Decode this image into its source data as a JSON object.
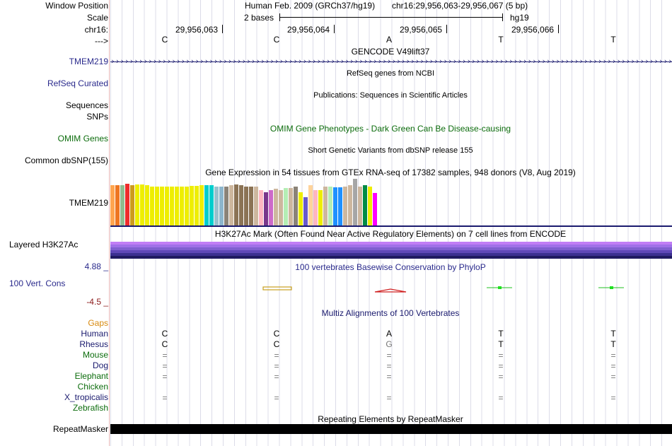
{
  "header": {
    "window_position_label": "Window Position",
    "scale_label": "Scale",
    "chr_label": "chr16:",
    "strand_label": "--->",
    "assembly_text": "Human Feb. 2009 (GRCh37/hg19)",
    "position_text": "chr16:29,956,063-29,956,067 (5 bp)",
    "scale_text": "2 bases",
    "scale_db": "hg19",
    "coords": [
      "29,956,063",
      "29,956,064",
      "29,956,065",
      "29,956,066"
    ],
    "bases": [
      "C",
      "C",
      "A",
      "T",
      "T"
    ]
  },
  "tracks": {
    "gencode": {
      "title": "GENCODE V49lift37",
      "label": "TMEM219",
      "arrows": "›››››››››››››››››››››››››››››››››››››››››››››››››››››››››››››››››››››››››››››››››››››››››››››››››››››››››››››››››››››››››››››››››››››››"
    },
    "refseq": {
      "title": "RefSeq genes from NCBI",
      "label": "RefSeq Curated"
    },
    "publications": {
      "title": "Publications: Sequences in Scientific Articles",
      "label_line1": "Sequences",
      "label_line2": "SNPs"
    },
    "omim": {
      "title": "OMIM Gene Phenotypes - Dark Green Can Be Disease-causing",
      "label": "OMIM Genes"
    },
    "dbsnp": {
      "title": "Short Genetic Variants from dbSNP release 155",
      "label": "Common dbSNP(155)"
    },
    "gtex": {
      "title": "Gene Expression in 54 tissues from GTEx RNA-seq of 17382 samples, 948 donors (V8, Aug 2019)",
      "label": "TMEM219",
      "bars": [
        {
          "color": "#FFA54F",
          "value": 0.83
        },
        {
          "color": "#EE7621",
          "value": 0.83
        },
        {
          "color": "#8FBC8F",
          "value": 0.83
        },
        {
          "color": "#EE2C2C",
          "value": 0.85
        },
        {
          "color": "#CD9B1D",
          "value": 0.83
        },
        {
          "color": "#EEEE00",
          "value": 0.84
        },
        {
          "color": "#EEEE00",
          "value": 0.84
        },
        {
          "color": "#EEEE00",
          "value": 0.83
        },
        {
          "color": "#EEEE00",
          "value": 0.8
        },
        {
          "color": "#EEEE00",
          "value": 0.8
        },
        {
          "color": "#EEEE00",
          "value": 0.79
        },
        {
          "color": "#EEEE00",
          "value": 0.79
        },
        {
          "color": "#EEEE00",
          "value": 0.79
        },
        {
          "color": "#EEEE00",
          "value": 0.8
        },
        {
          "color": "#EEEE00",
          "value": 0.79
        },
        {
          "color": "#EEEE00",
          "value": 0.8
        },
        {
          "color": "#EEEE00",
          "value": 0.81
        },
        {
          "color": "#EEEE00",
          "value": 0.81
        },
        {
          "color": "#EEEE00",
          "value": 0.83
        },
        {
          "color": "#00CDCD",
          "value": 0.82
        },
        {
          "color": "#00CDCD",
          "value": 0.82
        },
        {
          "color": "#9AC0CD",
          "value": 0.8
        },
        {
          "color": "#8DB6CD",
          "value": 0.8
        },
        {
          "color": "#8B8378",
          "value": 0.8
        },
        {
          "color": "#CDB79E",
          "value": 0.83
        },
        {
          "color": "#8B7355",
          "value": 0.84
        },
        {
          "color": "#8B7355",
          "value": 0.83
        },
        {
          "color": "#8B7355",
          "value": 0.8
        },
        {
          "color": "#8B7355",
          "value": 0.79
        },
        {
          "color": "#CDB79E",
          "value": 0.8
        },
        {
          "color": "#FFB6C1",
          "value": 0.72
        },
        {
          "color": "#7A378B",
          "value": 0.68
        },
        {
          "color": "#CD69C9",
          "value": 0.73
        },
        {
          "color": "#CDB79E",
          "value": 0.75
        },
        {
          "color": "#CDB79E",
          "value": 0.73
        },
        {
          "color": "#B4EEB4",
          "value": 0.77
        },
        {
          "color": "#CDB79E",
          "value": 0.77
        },
        {
          "color": "#8B8378",
          "value": 0.8
        },
        {
          "color": "#EEEE00",
          "value": 0.68
        },
        {
          "color": "#6A5ACD",
          "value": 0.58
        },
        {
          "color": "#FFD39B",
          "value": 0.83
        },
        {
          "color": "#FFB6C1",
          "value": 0.72
        },
        {
          "color": "#EEEE00",
          "value": 0.73
        },
        {
          "color": "#CDB79E",
          "value": 0.79
        },
        {
          "color": "#B4EEB4",
          "value": 0.79
        },
        {
          "color": "#1E90FF",
          "value": 0.78
        },
        {
          "color": "#1E90FF",
          "value": 0.78
        },
        {
          "color": "#CDB79E",
          "value": 0.8
        },
        {
          "color": "#CDB79E",
          "value": 0.82
        },
        {
          "color": "#A6A6A6",
          "value": 0.96
        },
        {
          "color": "#CDB79E",
          "value": 0.8
        },
        {
          "color": "#008B45",
          "value": 0.83
        },
        {
          "color": "#EEEE00",
          "value": 0.8
        },
        {
          "color": "#FF00FF",
          "value": 0.66
        }
      ]
    },
    "h3k27ac": {
      "title": "H3K27Ac Mark (Often Found Near Active Regulatory Elements) on 7 cell lines from ENCODE",
      "label": "Layered H3K27Ac",
      "layers": [
        "#C17DF5",
        "#A070E8",
        "#8060D0",
        "#6048B8",
        "#3C3090",
        "#201A60"
      ]
    },
    "conservation": {
      "title": "100 vertebrates Basewise Conservation by PhyloP",
      "label": "100 Vert. Cons",
      "max_label": "4.88 _",
      "min_label": "-4.5 _"
    },
    "multiz": {
      "title": "Multiz Alignments of 100 Vertebrates",
      "gaps_label": "Gaps",
      "species": [
        {
          "name": "Human",
          "row": [
            "C",
            "C",
            "A",
            "T",
            "T"
          ]
        },
        {
          "name": "Rhesus",
          "row": [
            "C",
            "C",
            "G",
            "T",
            "T"
          ]
        },
        {
          "name": "Mouse",
          "row": [
            "=",
            "=",
            "=",
            "=",
            "="
          ]
        },
        {
          "name": "Dog",
          "row": [
            "=",
            "=",
            "=",
            "=",
            "="
          ]
        },
        {
          "name": "Elephant",
          "row": [
            "=",
            "=",
            "=",
            "=",
            "="
          ]
        },
        {
          "name": "Chicken",
          "row": [
            "",
            "",
            "",
            "",
            ""
          ]
        },
        {
          "name": "X_tropicalis",
          "row": [
            "=",
            "=",
            "=",
            "=",
            "="
          ]
        },
        {
          "name": "Zebrafish",
          "row": [
            "",
            "",
            "",
            "",
            ""
          ]
        }
      ]
    },
    "repeatmasker": {
      "title": "Repeating Elements by RepeatMasker",
      "label": "RepeatMasker"
    }
  },
  "colors": {
    "track_label_blue": "#2a2a8c",
    "omim_green": "#0c6c0c",
    "gaps_orange": "#d88a10",
    "cons_min_red": "#8c1a1a"
  }
}
